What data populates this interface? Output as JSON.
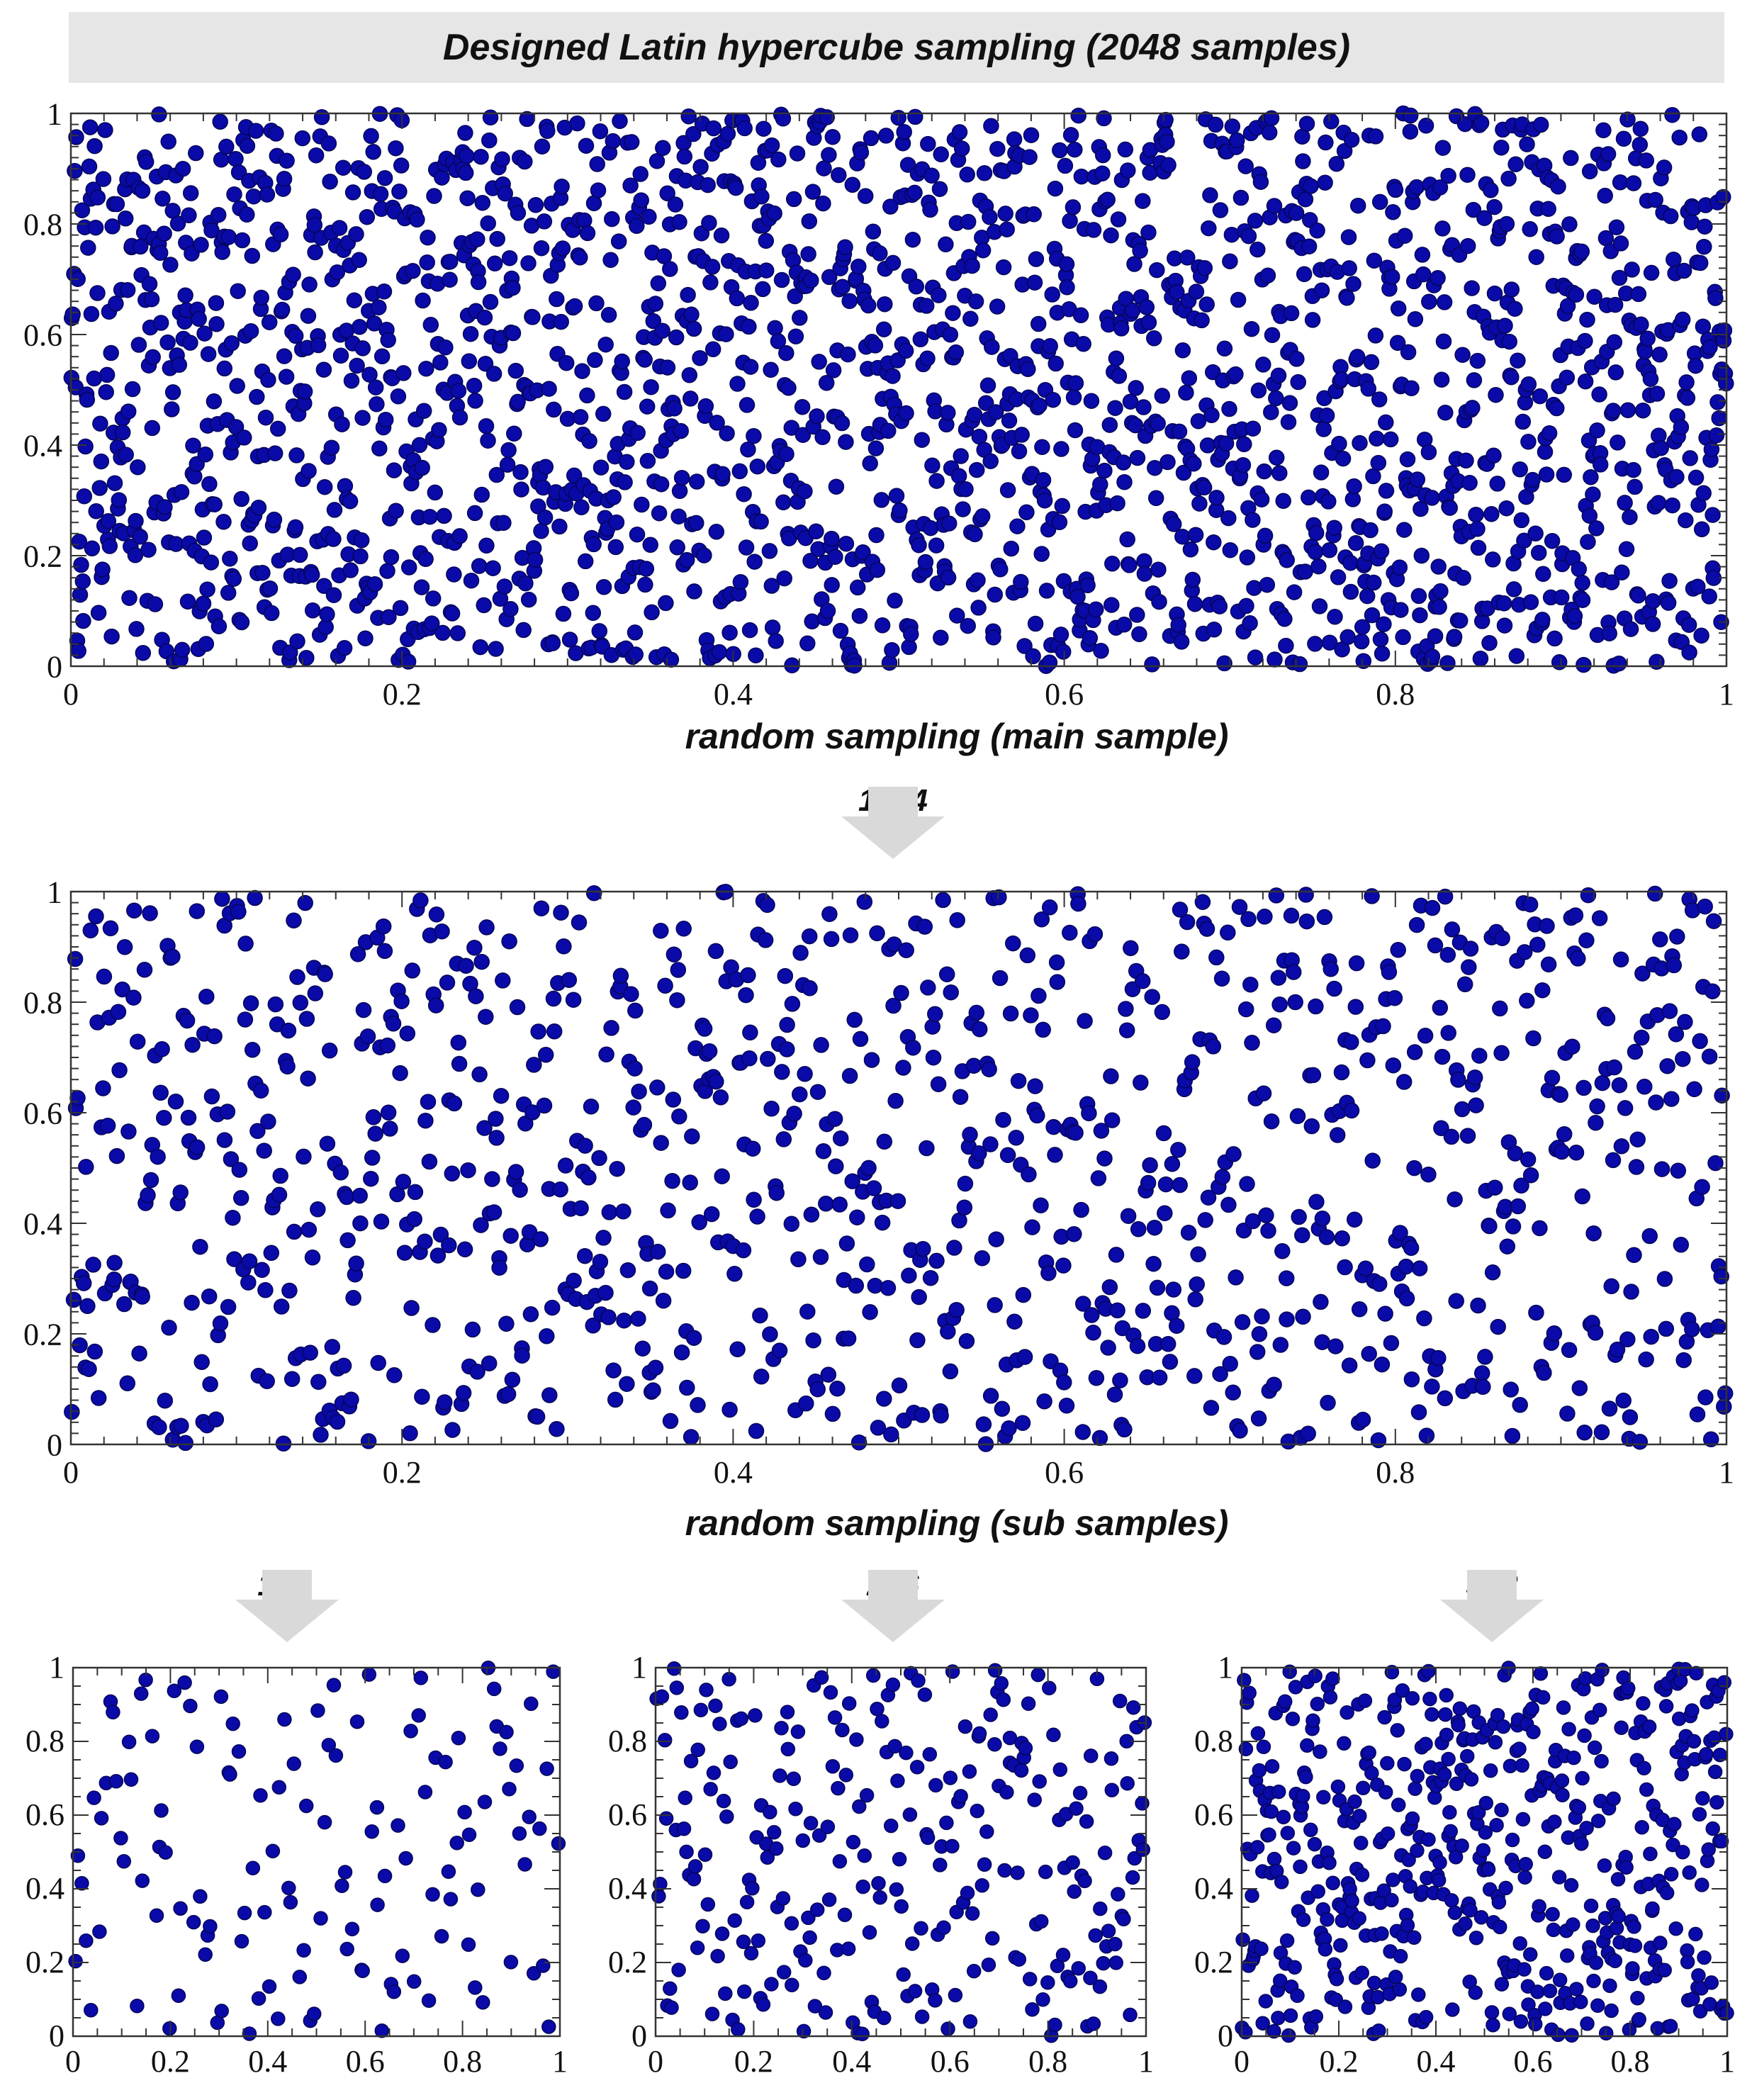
{
  "header": {
    "title": "Designed Latin hypercube sampling (2048 samples)"
  },
  "colors": {
    "point_fill": "#0a0aa8",
    "point_stroke": "#05055a",
    "header_bg": "#e6e6e6",
    "arrow": "#d9d9d9"
  },
  "arrows": [
    {
      "id": "arrow-1024",
      "label": "1024"
    },
    {
      "id": "arrow-128",
      "label": "128"
    },
    {
      "id": "arrow-256",
      "label": "256"
    },
    {
      "id": "arrow-512",
      "label": "512"
    }
  ],
  "chart_data": [
    {
      "id": "main",
      "type": "scatter",
      "xlabel": "random sampling (main sample)",
      "point_count": 2048,
      "xlim": [
        0,
        1
      ],
      "ylim": [
        0,
        1
      ],
      "x_ticks": [
        "0",
        "0.2",
        "0.4",
        "0.6",
        "0.8",
        "1"
      ],
      "y_ticks": [
        "0",
        "0.2",
        "0.4",
        "0.6",
        "0.8",
        "1"
      ],
      "grid": false,
      "seed": 11
    },
    {
      "id": "sub1024",
      "type": "scatter",
      "xlabel": "random sampling (sub samples)",
      "point_count": 1024,
      "xlim": [
        0,
        1
      ],
      "ylim": [
        0,
        1
      ],
      "x_ticks": [
        "0",
        "0.2",
        "0.4",
        "0.6",
        "0.8",
        "1"
      ],
      "y_ticks": [
        "0",
        "0.2",
        "0.4",
        "0.6",
        "0.8",
        "1"
      ],
      "grid": false,
      "seed": 23
    },
    {
      "id": "sub128",
      "type": "scatter",
      "xlabel": "",
      "point_count": 128,
      "xlim": [
        0,
        1
      ],
      "ylim": [
        0,
        1
      ],
      "x_ticks": [
        "0",
        "0.2",
        "0.4",
        "0.6",
        "0.8",
        "1"
      ],
      "y_ticks": [
        "0",
        "0.2",
        "0.4",
        "0.6",
        "0.8",
        "1"
      ],
      "grid": false,
      "seed": 37
    },
    {
      "id": "sub256",
      "type": "scatter",
      "xlabel": "",
      "point_count": 256,
      "xlim": [
        0,
        1
      ],
      "ylim": [
        0,
        1
      ],
      "x_ticks": [
        "0",
        "0.2",
        "0.4",
        "0.6",
        "0.8",
        "1"
      ],
      "y_ticks": [
        "0",
        "0.2",
        "0.4",
        "0.6",
        "0.8",
        "1"
      ],
      "grid": false,
      "seed": 41
    },
    {
      "id": "sub512",
      "type": "scatter",
      "xlabel": "",
      "point_count": 512,
      "xlim": [
        0,
        1
      ],
      "ylim": [
        0,
        1
      ],
      "x_ticks": [
        "0",
        "0.2",
        "0.4",
        "0.6",
        "0.8",
        "1"
      ],
      "y_ticks": [
        "0",
        "0.2",
        "0.4",
        "0.6",
        "0.8",
        "1"
      ],
      "grid": false,
      "seed": 53
    }
  ]
}
